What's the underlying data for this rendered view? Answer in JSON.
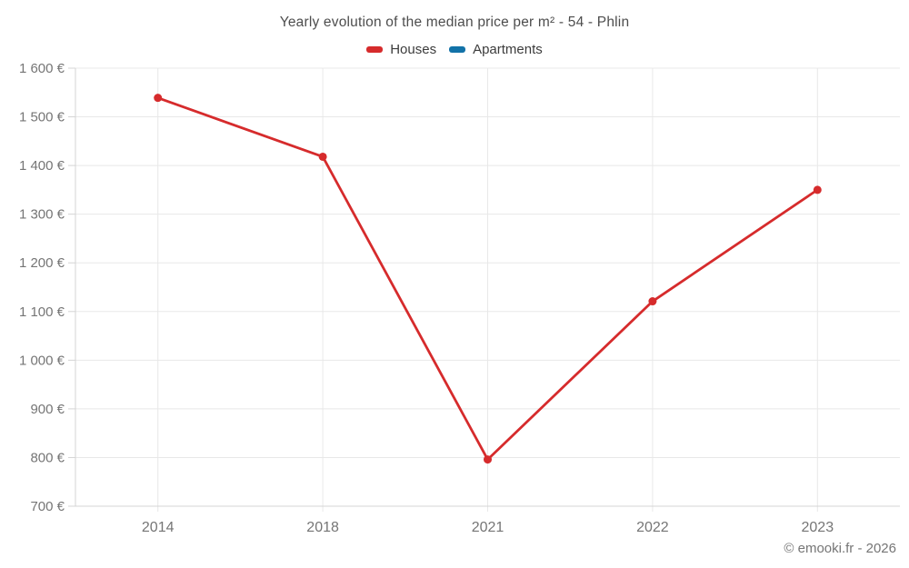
{
  "header": {
    "title": "Yearly evolution of the median price per m² - 54 - Phlin",
    "legend": [
      {
        "label": "Houses",
        "color": "#d62b2c"
      },
      {
        "label": "Apartments",
        "color": "#1272a8"
      }
    ]
  },
  "footer": {
    "credit": "© emooki.fr - 2026"
  },
  "chart_data": {
    "type": "line",
    "title": "Yearly evolution of the median price per m² - 54 - Phlin",
    "categories": [
      "2014",
      "2018",
      "2021",
      "2022",
      "2023"
    ],
    "series": [
      {
        "name": "Houses",
        "color": "#d62b2c",
        "values": [
          1539,
          1418,
          796,
          1121,
          1350
        ]
      },
      {
        "name": "Apartments",
        "color": "#1272a8",
        "values": []
      }
    ],
    "xlabel": "",
    "ylabel": "",
    "ylim": [
      700,
      1600
    ],
    "ytick_values": [
      700,
      800,
      900,
      1000,
      1100,
      1200,
      1300,
      1400,
      1500,
      1600
    ],
    "ytick_labels": [
      "700 €",
      "800 €",
      "900 €",
      "1 000 €",
      "1 100 €",
      "1 200 €",
      "1 300 €",
      "1 400 €",
      "1 500 €",
      "1 600 €"
    ],
    "grid": true,
    "legend_position": "top",
    "colors": {
      "grid_line": "#e8e8e8",
      "axis_line": "#d4d4d4",
      "tick_text": "#757575"
    }
  }
}
